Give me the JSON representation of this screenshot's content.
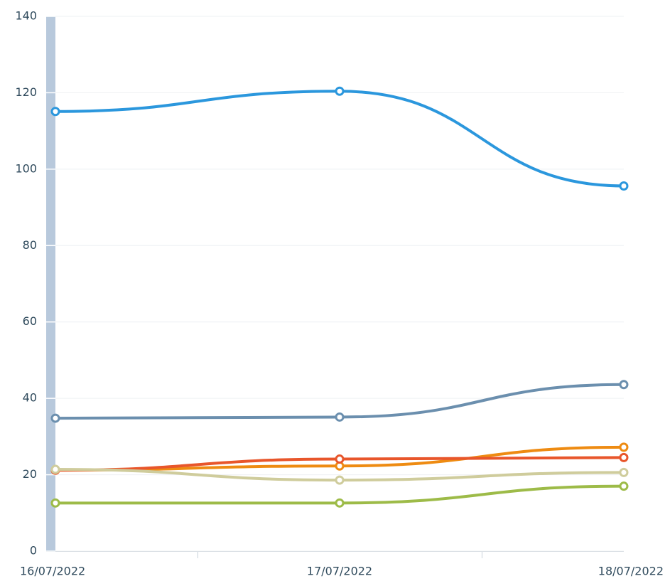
{
  "chart_data": {
    "type": "line",
    "categories": [
      "16/07/2022",
      "17/07/2022",
      "18/07/2022"
    ],
    "series": [
      {
        "color": "#2b97dd",
        "values": [
          115.1,
          120.4,
          95.6
        ]
      },
      {
        "color": "#6b8fae",
        "values": [
          34.8,
          35.1,
          43.6
        ]
      },
      {
        "color": "#ee8b12",
        "values": [
          21.2,
          22.3,
          27.2
        ]
      },
      {
        "color": "#e8562b",
        "values": [
          21.2,
          24.1,
          24.5
        ]
      },
      {
        "color": "#cfcc9c",
        "values": [
          21.4,
          18.6,
          20.6
        ]
      },
      {
        "color": "#9dbb48",
        "values": [
          12.6,
          12.6,
          17.0
        ]
      }
    ],
    "ylim": [
      0,
      140
    ],
    "yticks": [
      0,
      20,
      40,
      60,
      80,
      100,
      120,
      140
    ],
    "grid": true
  }
}
